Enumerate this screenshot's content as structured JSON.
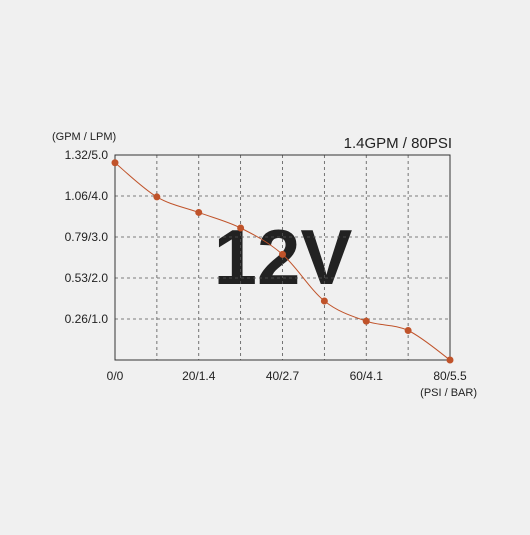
{
  "chart_data": {
    "type": "line",
    "title": "1.4GPM / 80PSI",
    "ylabel": "(GPM / LPM)",
    "xlabel": "(PSI / BAR)",
    "watermark": "12V",
    "x_ticks": [
      "0/0",
      "20/1.4",
      "40/2.7",
      "60/4.1",
      "80/5.5"
    ],
    "y_ticks": [
      "1.32/5.0",
      "1.06/4.0",
      "0.79/3.0",
      "0.53/2.0",
      "0.26/1.0"
    ],
    "xlim": [
      0,
      80
    ],
    "ylim": [
      0,
      1.32
    ],
    "series": [
      {
        "x": [
          0,
          10,
          20,
          30,
          40,
          50,
          60,
          70,
          80
        ],
        "y": [
          1.27,
          1.05,
          0.95,
          0.85,
          0.68,
          0.38,
          0.25,
          0.19,
          0.0
        ]
      }
    ],
    "grid": true,
    "colors": {
      "line": "#c0532a",
      "grid": "#555555",
      "axis": "#333333",
      "watermark": "#dcdcdc"
    }
  }
}
